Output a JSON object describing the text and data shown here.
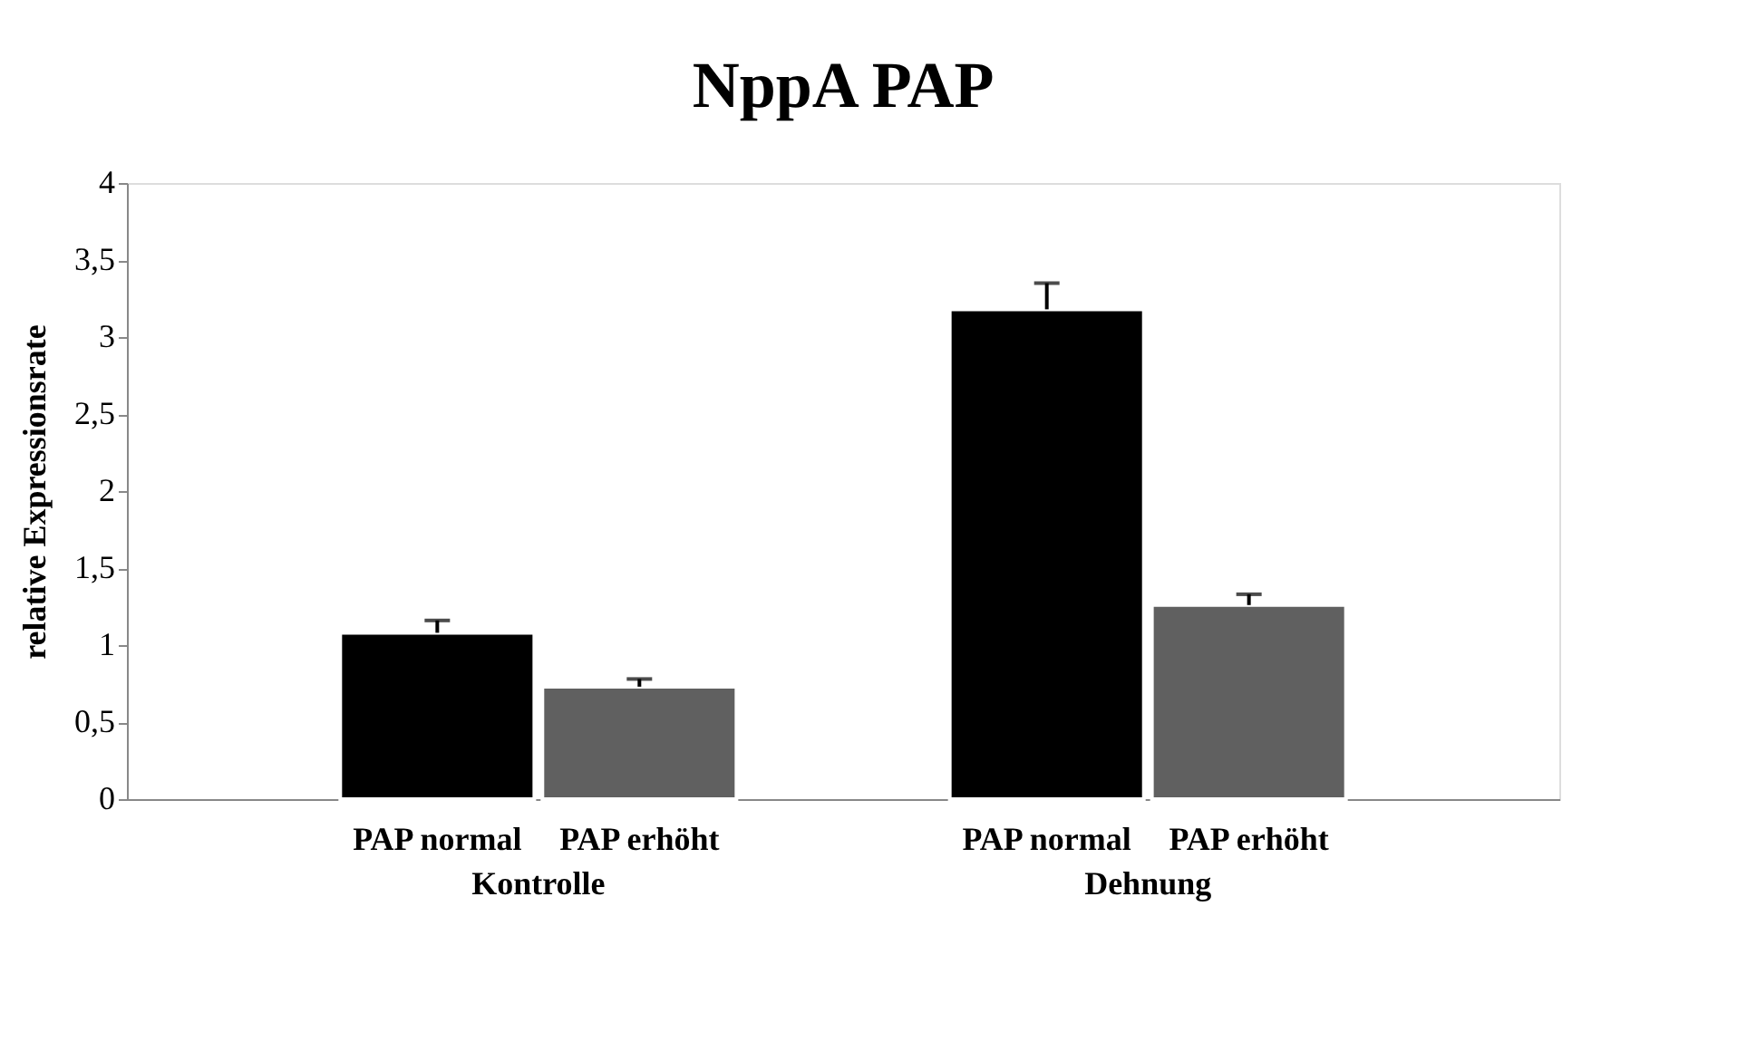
{
  "chart_data": {
    "type": "bar",
    "title": "NppA PAP",
    "ylabel": "relative Expressionsrate",
    "categories": [
      "Kontrolle",
      "Dehnung"
    ],
    "series": [
      {
        "name": "PAP normal",
        "color": "#000000",
        "values": [
          1.08,
          3.18
        ],
        "errors": [
          [
            1.08,
            1.16
          ],
          [
            3.18,
            3.35
          ]
        ]
      },
      {
        "name": "PAP erhöht",
        "color": "#606060",
        "values": [
          0.73,
          1.26
        ],
        "errors": [
          [
            0.73,
            0.78
          ],
          [
            1.26,
            1.33
          ]
        ]
      }
    ],
    "ylim": [
      0,
      4
    ],
    "yticks": [
      0,
      {
        "value": 0.5,
        "label": "0,5"
      },
      1,
      {
        "value": 1.5,
        "label": "1,5"
      },
      2,
      {
        "value": 2.5,
        "label": "2,5"
      },
      3,
      {
        "value": 3.5,
        "label": "3,5"
      },
      4
    ],
    "grid": false,
    "legend": false
  }
}
